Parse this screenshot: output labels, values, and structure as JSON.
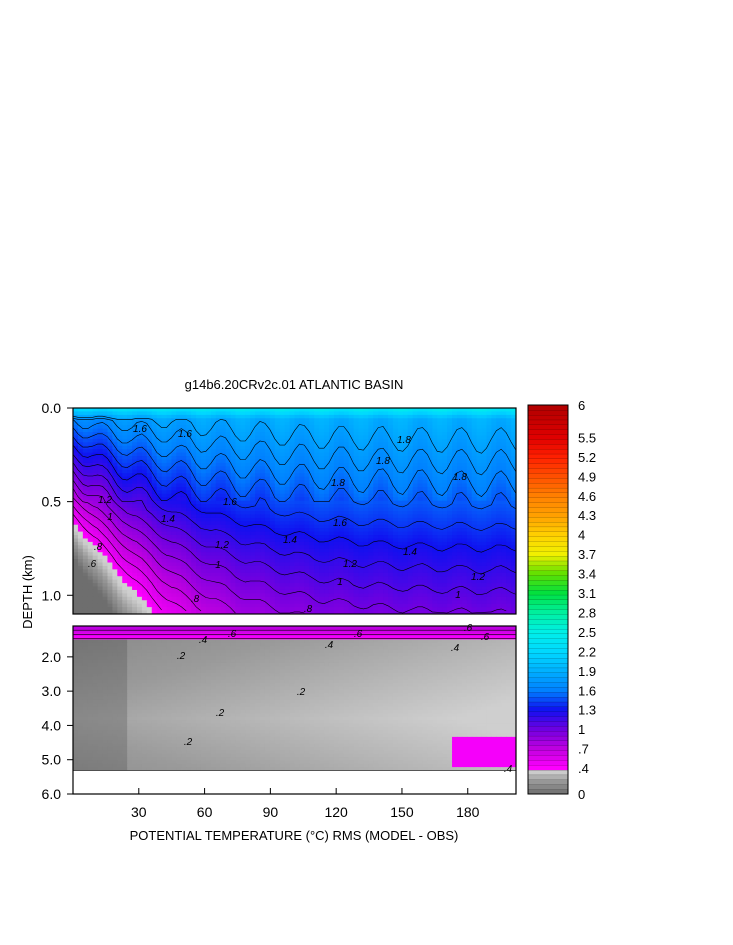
{
  "chart_data": {
    "type": "heatmap",
    "title": "g14b6.20CRv2c.01 ATLANTIC BASIN",
    "xlabel": "POTENTIAL TEMPERATURE (°C) RMS (MODEL - OBS)",
    "ylabel": "DEPTH (km)",
    "xlim": [
      0,
      202
    ],
    "x_ticks": [
      "30",
      "60",
      "90",
      "120",
      "150",
      "180"
    ],
    "upper_panel": {
      "ylim": [
        0.0,
        1.1
      ],
      "y_ticks": [
        "0.0",
        "0.5",
        "1.0"
      ],
      "contour_labels": [
        "1.6",
        "1.6",
        "1.8",
        "1.8",
        "1.8",
        "1.8",
        "1.6",
        "1.6",
        "1.4",
        "1.4",
        "1.4",
        "1.2",
        "1.2",
        "1.2",
        "1.2",
        "1",
        "1",
        "1",
        "1",
        ".8",
        ".8",
        ".8",
        ".6"
      ],
      "field_range": [
        0.2,
        2.6
      ]
    },
    "lower_panel": {
      "ylim": [
        1.1,
        6.0
      ],
      "y_ticks": [
        "2.0",
        "3.0",
        "4.0",
        "5.0",
        "6.0"
      ],
      "contour_labels": [
        ".6",
        ".6",
        ".6",
        ".6",
        ".4",
        ".4",
        ".4",
        ".4",
        ".2",
        ".2",
        ".2",
        ".2"
      ],
      "field_range": [
        0.0,
        0.7
      ]
    },
    "colorbar": {
      "labels": [
        "6",
        "5.5",
        "5.2",
        "4.9",
        "4.6",
        "4.3",
        "4",
        "3.7",
        "3.4",
        "3.1",
        "2.8",
        "2.5",
        "2.2",
        "1.9",
        "1.6",
        "1.3",
        "1",
        ".7",
        ".4",
        "0"
      ],
      "range": [
        0,
        6
      ],
      "stops": [
        {
          "v": 0.0,
          "c": "#6e6e6e"
        },
        {
          "v": 0.2,
          "c": "#9a9a9a"
        },
        {
          "v": 0.35,
          "c": "#cfcfcf"
        },
        {
          "v": 0.4,
          "c": "#ff00ff"
        },
        {
          "v": 0.7,
          "c": "#c000e0"
        },
        {
          "v": 1.0,
          "c": "#7000e0"
        },
        {
          "v": 1.3,
          "c": "#1010f0"
        },
        {
          "v": 1.6,
          "c": "#0080ff"
        },
        {
          "v": 1.9,
          "c": "#00b0ff"
        },
        {
          "v": 2.2,
          "c": "#00d8ff"
        },
        {
          "v": 2.5,
          "c": "#00f0e8"
        },
        {
          "v": 2.8,
          "c": "#00f0a0"
        },
        {
          "v": 3.1,
          "c": "#00e040"
        },
        {
          "v": 3.4,
          "c": "#60e000"
        },
        {
          "v": 3.7,
          "c": "#f0f000"
        },
        {
          "v": 4.0,
          "c": "#ffd000"
        },
        {
          "v": 4.3,
          "c": "#ffa000"
        },
        {
          "v": 4.6,
          "c": "#ff8000"
        },
        {
          "v": 4.9,
          "c": "#ff5000"
        },
        {
          "v": 5.2,
          "c": "#ff2000"
        },
        {
          "v": 5.5,
          "c": "#e00000"
        },
        {
          "v": 6.0,
          "c": "#b00000"
        }
      ]
    }
  }
}
